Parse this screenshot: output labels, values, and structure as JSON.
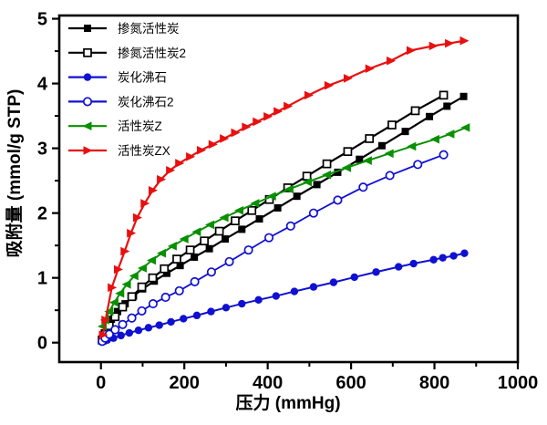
{
  "figure": {
    "background": "#ffffff",
    "frame_color": "#000000"
  },
  "axes": {
    "x": {
      "title": "压力  (mmHg)",
      "range": [
        -100,
        1000
      ],
      "major_ticks": [
        0,
        200,
        400,
        600,
        800,
        1000
      ],
      "minor_ticks": [
        100,
        300,
        500,
        700,
        900
      ],
      "tick_labels": [
        "0",
        "200",
        "400",
        "600",
        "800",
        "1000"
      ]
    },
    "y": {
      "title": "吸附量  (mmol/g STP)",
      "range": [
        -0.3,
        5.05
      ],
      "major_ticks": [
        0,
        1,
        2,
        3,
        4,
        5
      ],
      "minor_ticks": [
        0.5,
        1.5,
        2.5,
        3.5,
        4.5
      ],
      "tick_labels": [
        "0",
        "1",
        "2",
        "3",
        "4",
        "5"
      ]
    }
  },
  "legend": {
    "position": "top-left",
    "items": [
      {
        "label": "掺氮活性炭",
        "marker": "square-filled",
        "color": "#000000"
      },
      {
        "label": "掺氮活性炭2",
        "marker": "square-open",
        "color": "#000000"
      },
      {
        "label": "炭化沸石",
        "marker": "circle-filled",
        "color": "#1010d0"
      },
      {
        "label": "炭化沸石2",
        "marker": "circle-open",
        "color": "#1010d0"
      },
      {
        "label": "活性炭Z",
        "marker": "triangle-left-filled",
        "color": "#089000"
      },
      {
        "label": "活性炭ZX",
        "marker": "triangle-right-filled",
        "color": "#e81010"
      }
    ]
  },
  "chart_data": {
    "type": "line",
    "title": "",
    "xlabel": "压力  (mmHg)",
    "ylabel": "吸附量  (mmol/g STP)",
    "xlim": [
      -100,
      1000
    ],
    "ylim": [
      -0.3,
      5.05
    ],
    "grid": false,
    "legend_position": "top-left",
    "series": [
      {
        "name": "掺氮活性炭",
        "color": "#000000",
        "marker": "square-filled",
        "line_width": 2.2,
        "x": [
          3,
          8,
          15,
          25,
          40,
          58,
          78,
          100,
          128,
          158,
          190,
          224,
          260,
          298,
          338,
          380,
          424,
          470,
          518,
          568,
          620,
          674,
          730,
          788,
          830,
          870
        ],
        "y": [
          0.06,
          0.15,
          0.25,
          0.36,
          0.48,
          0.6,
          0.72,
          0.83,
          0.95,
          1.07,
          1.19,
          1.32,
          1.45,
          1.6,
          1.75,
          1.91,
          2.08,
          2.26,
          2.44,
          2.63,
          2.83,
          3.04,
          3.26,
          3.49,
          3.65,
          3.8
        ]
      },
      {
        "name": "掺氮活性炭2",
        "color": "#000000",
        "marker": "square-open",
        "line_width": 2.2,
        "x": [
          3,
          10,
          20,
          34,
          52,
          74,
          98,
          124,
          152,
          182,
          214,
          248,
          284,
          322,
          362,
          404,
          448,
          494,
          542,
          592,
          644,
          698,
          754,
          822
        ],
        "y": [
          0.04,
          0.13,
          0.26,
          0.4,
          0.55,
          0.71,
          0.86,
          1.0,
          1.14,
          1.29,
          1.43,
          1.57,
          1.72,
          1.88,
          2.04,
          2.21,
          2.39,
          2.57,
          2.76,
          2.95,
          3.15,
          3.36,
          3.58,
          3.82
        ]
      },
      {
        "name": "炭化沸石",
        "color": "#1010d0",
        "marker": "circle-filled",
        "line_width": 2.0,
        "x": [
          3,
          15,
          30,
          48,
          68,
          90,
          114,
          140,
          168,
          198,
          230,
          264,
          300,
          338,
          378,
          420,
          464,
          510,
          558,
          608,
          660,
          714,
          750,
          798,
          820,
          846,
          872
        ],
        "y": [
          0.01,
          0.04,
          0.07,
          0.11,
          0.15,
          0.19,
          0.23,
          0.27,
          0.32,
          0.37,
          0.42,
          0.48,
          0.54,
          0.6,
          0.66,
          0.72,
          0.79,
          0.86,
          0.93,
          1.01,
          1.09,
          1.17,
          1.22,
          1.28,
          1.31,
          1.34,
          1.38
        ]
      },
      {
        "name": "炭化沸石2",
        "color": "#1010d0",
        "marker": "circle-open",
        "line_width": 1.8,
        "x": [
          3,
          10,
          20,
          34,
          52,
          74,
          98,
          125,
          155,
          188,
          225,
          265,
          308,
          354,
          403,
          455,
          510,
          568,
          629,
          693,
          760,
          822
        ],
        "y": [
          0.02,
          0.07,
          0.13,
          0.2,
          0.28,
          0.38,
          0.49,
          0.6,
          0.7,
          0.8,
          0.94,
          1.09,
          1.25,
          1.43,
          1.62,
          1.8,
          2.0,
          2.2,
          2.4,
          2.58,
          2.75,
          2.9
        ]
      },
      {
        "name": "活性炭Z",
        "color": "#089000",
        "marker": "triangle-left-filled",
        "line_width": 2.0,
        "x": [
          4,
          10,
          20,
          32,
          46,
          62,
          80,
          100,
          122,
          146,
          172,
          200,
          230,
          262,
          296,
          332,
          370,
          410,
          452,
          496,
          542,
          590,
          640,
          692,
          746,
          802,
          838,
          875
        ],
        "y": [
          0.25,
          0.35,
          0.48,
          0.62,
          0.76,
          0.9,
          1.03,
          1.15,
          1.27,
          1.38,
          1.49,
          1.6,
          1.71,
          1.82,
          1.93,
          2.04,
          2.15,
          2.26,
          2.37,
          2.48,
          2.59,
          2.7,
          2.81,
          2.92,
          3.03,
          3.14,
          3.22,
          3.32
        ]
      },
      {
        "name": "活性炭ZX",
        "color": "#e81010",
        "marker": "triangle-right-filled",
        "line_width": 2.2,
        "x": [
          5,
          11,
          26,
          41,
          57,
          72,
          87,
          105,
          124,
          144,
          166,
          188,
          214,
          240,
          268,
          295,
          322,
          348,
          374,
          400,
          424,
          448,
          498,
          546,
          592,
          644,
          695,
          743,
          797,
          835,
          871
        ],
        "y": [
          0.12,
          0.35,
          0.85,
          1.13,
          1.41,
          1.69,
          1.93,
          2.15,
          2.35,
          2.52,
          2.66,
          2.77,
          2.87,
          2.97,
          3.06,
          3.15,
          3.24,
          3.33,
          3.41,
          3.49,
          3.57,
          3.65,
          3.82,
          3.97,
          4.08,
          4.23,
          4.35,
          4.51,
          4.58,
          4.62,
          4.66
        ]
      }
    ]
  }
}
